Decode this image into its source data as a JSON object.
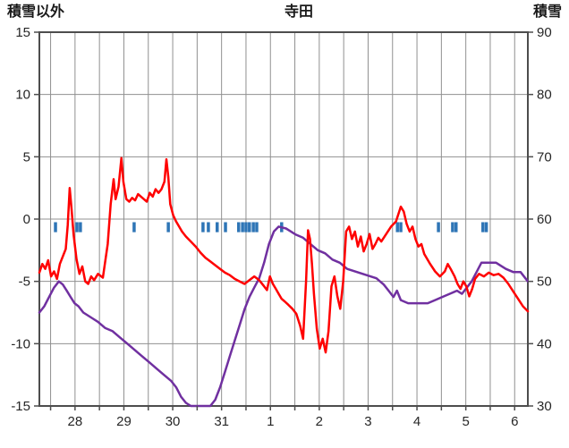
{
  "header": {
    "left_axis_title": "積雪以外",
    "title": "寺田",
    "right_axis_title": "積雪"
  },
  "chart_data": {
    "type": "line",
    "title": "寺田",
    "grid_on": true,
    "grid_color": "#909090",
    "frame_color": "#4d4d4d",
    "background": "#ffffff",
    "left_axis": {
      "title": "積雪以外",
      "min": -15,
      "max": 15,
      "ticks": [
        15,
        10,
        5,
        0,
        -5,
        -10,
        -15
      ]
    },
    "right_axis": {
      "title": "積雪",
      "min": 30,
      "max": 90,
      "ticks": [
        90,
        80,
        70,
        60,
        50,
        40,
        30
      ]
    },
    "x_axis": {
      "labels": [
        "28",
        "29",
        "30",
        "31",
        "1",
        "2",
        "3",
        "4",
        "5",
        "6"
      ],
      "label_positions": [
        0.73,
        1.73,
        2.73,
        3.73,
        4.73,
        5.73,
        6.73,
        7.73,
        8.73,
        9.73
      ],
      "range": [
        0,
        10
      ],
      "gridline_start": 0.23,
      "gridline_step": 0.5
    },
    "series": [
      {
        "id": "snow-depth",
        "name": "積雪",
        "axis": "right",
        "color": "#7030A0",
        "points": [
          [
            0.0,
            45
          ],
          [
            0.1,
            46
          ],
          [
            0.2,
            47.5
          ],
          [
            0.3,
            49
          ],
          [
            0.4,
            50
          ],
          [
            0.48,
            49.5
          ],
          [
            0.56,
            48.5
          ],
          [
            0.64,
            47.5
          ],
          [
            0.72,
            46.5
          ],
          [
            0.8,
            46
          ],
          [
            0.9,
            45
          ],
          [
            1.0,
            44.5
          ],
          [
            1.1,
            44
          ],
          [
            1.2,
            43.5
          ],
          [
            1.35,
            42.5
          ],
          [
            1.5,
            42
          ],
          [
            1.65,
            41
          ],
          [
            1.8,
            40
          ],
          [
            1.95,
            39
          ],
          [
            2.1,
            38
          ],
          [
            2.25,
            37
          ],
          [
            2.4,
            36
          ],
          [
            2.55,
            35
          ],
          [
            2.7,
            34
          ],
          [
            2.8,
            33
          ],
          [
            2.9,
            31.5
          ],
          [
            3.0,
            30.5
          ],
          [
            3.1,
            30
          ],
          [
            3.5,
            30
          ],
          [
            3.6,
            31
          ],
          [
            3.7,
            33
          ],
          [
            3.8,
            35.5
          ],
          [
            3.9,
            38
          ],
          [
            4.0,
            40.5
          ],
          [
            4.1,
            43
          ],
          [
            4.2,
            45.5
          ],
          [
            4.3,
            47.5
          ],
          [
            4.4,
            49
          ],
          [
            4.5,
            50.5
          ],
          [
            4.6,
            53
          ],
          [
            4.7,
            56
          ],
          [
            4.8,
            58
          ],
          [
            4.9,
            58.8
          ],
          [
            5.05,
            58.5
          ],
          [
            5.15,
            58
          ],
          [
            5.25,
            57.5
          ],
          [
            5.4,
            57
          ],
          [
            5.55,
            56
          ],
          [
            5.7,
            55
          ],
          [
            5.85,
            54.5
          ],
          [
            6.0,
            53.5
          ],
          [
            6.15,
            53
          ],
          [
            6.3,
            52
          ],
          [
            6.5,
            51.5
          ],
          [
            6.7,
            51
          ],
          [
            6.9,
            50.5
          ],
          [
            7.05,
            49.5
          ],
          [
            7.15,
            48.5
          ],
          [
            7.25,
            47.5
          ],
          [
            7.32,
            48.5
          ],
          [
            7.4,
            47
          ],
          [
            7.55,
            46.5
          ],
          [
            7.75,
            46.5
          ],
          [
            7.95,
            46.5
          ],
          [
            8.1,
            47
          ],
          [
            8.25,
            47.5
          ],
          [
            8.4,
            48
          ],
          [
            8.55,
            48.5
          ],
          [
            8.65,
            48
          ],
          [
            8.75,
            49
          ],
          [
            8.85,
            50
          ],
          [
            8.95,
            51.5
          ],
          [
            9.05,
            53
          ],
          [
            9.2,
            53
          ],
          [
            9.35,
            53
          ],
          [
            9.45,
            52.5
          ],
          [
            9.55,
            52
          ],
          [
            9.7,
            51.5
          ],
          [
            9.85,
            51.5
          ],
          [
            10.0,
            50
          ]
        ]
      },
      {
        "id": "non-snow",
        "name": "積雪以外",
        "axis": "left",
        "color": "#FF0000",
        "points": [
          [
            0.0,
            -4.3
          ],
          [
            0.06,
            -3.6
          ],
          [
            0.12,
            -4.0
          ],
          [
            0.18,
            -3.3
          ],
          [
            0.24,
            -4.6
          ],
          [
            0.3,
            -4.2
          ],
          [
            0.36,
            -4.8
          ],
          [
            0.42,
            -3.6
          ],
          [
            0.48,
            -3.0
          ],
          [
            0.54,
            -2.4
          ],
          [
            0.58,
            -0.5
          ],
          [
            0.62,
            2.5
          ],
          [
            0.66,
            0.8
          ],
          [
            0.7,
            -1.2
          ],
          [
            0.76,
            -3.2
          ],
          [
            0.82,
            -4.4
          ],
          [
            0.88,
            -3.8
          ],
          [
            0.94,
            -5.0
          ],
          [
            1.0,
            -5.2
          ],
          [
            1.06,
            -4.6
          ],
          [
            1.12,
            -4.9
          ],
          [
            1.2,
            -4.4
          ],
          [
            1.3,
            -4.7
          ],
          [
            1.4,
            -2.0
          ],
          [
            1.46,
            1.2
          ],
          [
            1.52,
            3.2
          ],
          [
            1.56,
            1.6
          ],
          [
            1.62,
            2.6
          ],
          [
            1.68,
            4.9
          ],
          [
            1.72,
            3.0
          ],
          [
            1.78,
            1.6
          ],
          [
            1.84,
            1.4
          ],
          [
            1.9,
            1.7
          ],
          [
            1.96,
            1.5
          ],
          [
            2.02,
            2.0
          ],
          [
            2.08,
            1.8
          ],
          [
            2.14,
            1.6
          ],
          [
            2.2,
            1.4
          ],
          [
            2.26,
            2.1
          ],
          [
            2.32,
            1.8
          ],
          [
            2.38,
            2.4
          ],
          [
            2.44,
            2.1
          ],
          [
            2.5,
            2.4
          ],
          [
            2.56,
            3.0
          ],
          [
            2.6,
            4.8
          ],
          [
            2.64,
            3.4
          ],
          [
            2.68,
            1.2
          ],
          [
            2.74,
            0.3
          ],
          [
            2.8,
            -0.2
          ],
          [
            2.86,
            -0.6
          ],
          [
            2.92,
            -1.0
          ],
          [
            3.0,
            -1.4
          ],
          [
            3.1,
            -1.8
          ],
          [
            3.2,
            -2.2
          ],
          [
            3.3,
            -2.7
          ],
          [
            3.4,
            -3.1
          ],
          [
            3.5,
            -3.4
          ],
          [
            3.6,
            -3.7
          ],
          [
            3.7,
            -4.0
          ],
          [
            3.8,
            -4.3
          ],
          [
            3.9,
            -4.5
          ],
          [
            4.0,
            -4.8
          ],
          [
            4.1,
            -5.0
          ],
          [
            4.2,
            -5.2
          ],
          [
            4.3,
            -4.9
          ],
          [
            4.4,
            -4.6
          ],
          [
            4.5,
            -4.9
          ],
          [
            4.6,
            -5.4
          ],
          [
            4.66,
            -5.7
          ],
          [
            4.72,
            -4.6
          ],
          [
            4.78,
            -5.2
          ],
          [
            4.84,
            -5.6
          ],
          [
            4.9,
            -6.0
          ],
          [
            4.96,
            -6.4
          ],
          [
            5.02,
            -6.6
          ],
          [
            5.1,
            -6.9
          ],
          [
            5.18,
            -7.2
          ],
          [
            5.26,
            -7.6
          ],
          [
            5.34,
            -8.6
          ],
          [
            5.4,
            -9.6
          ],
          [
            5.46,
            -5.0
          ],
          [
            5.5,
            -0.9
          ],
          [
            5.54,
            -1.6
          ],
          [
            5.58,
            -3.6
          ],
          [
            5.62,
            -6.0
          ],
          [
            5.68,
            -8.8
          ],
          [
            5.74,
            -10.4
          ],
          [
            5.8,
            -9.6
          ],
          [
            5.86,
            -10.7
          ],
          [
            5.92,
            -9.0
          ],
          [
            5.98,
            -5.4
          ],
          [
            6.04,
            -4.6
          ],
          [
            6.1,
            -6.2
          ],
          [
            6.16,
            -7.2
          ],
          [
            6.22,
            -5.0
          ],
          [
            6.28,
            -1.0
          ],
          [
            6.34,
            -0.6
          ],
          [
            6.4,
            -1.6
          ],
          [
            6.46,
            -1.0
          ],
          [
            6.52,
            -2.2
          ],
          [
            6.58,
            -1.4
          ],
          [
            6.64,
            -2.6
          ],
          [
            6.7,
            -2.0
          ],
          [
            6.76,
            -1.2
          ],
          [
            6.82,
            -2.4
          ],
          [
            6.88,
            -2.0
          ],
          [
            6.94,
            -1.5
          ],
          [
            7.0,
            -1.8
          ],
          [
            7.1,
            -1.2
          ],
          [
            7.2,
            -0.6
          ],
          [
            7.3,
            -0.2
          ],
          [
            7.4,
            1.0
          ],
          [
            7.46,
            0.6
          ],
          [
            7.52,
            -0.4
          ],
          [
            7.58,
            -1.0
          ],
          [
            7.64,
            -0.6
          ],
          [
            7.7,
            -1.6
          ],
          [
            7.76,
            -2.2
          ],
          [
            7.82,
            -2.0
          ],
          [
            7.88,
            -2.8
          ],
          [
            7.94,
            -3.2
          ],
          [
            8.0,
            -3.6
          ],
          [
            8.1,
            -4.2
          ],
          [
            8.2,
            -4.6
          ],
          [
            8.3,
            -4.2
          ],
          [
            8.36,
            -3.6
          ],
          [
            8.42,
            -4.0
          ],
          [
            8.5,
            -4.6
          ],
          [
            8.56,
            -5.2
          ],
          [
            8.62,
            -5.6
          ],
          [
            8.68,
            -5.0
          ],
          [
            8.74,
            -5.4
          ],
          [
            8.8,
            -6.2
          ],
          [
            8.86,
            -5.6
          ],
          [
            8.92,
            -4.8
          ],
          [
            9.0,
            -4.4
          ],
          [
            9.1,
            -4.6
          ],
          [
            9.2,
            -4.3
          ],
          [
            9.3,
            -4.5
          ],
          [
            9.4,
            -4.4
          ],
          [
            9.5,
            -4.7
          ],
          [
            9.6,
            -5.2
          ],
          [
            9.7,
            -5.8
          ],
          [
            9.8,
            -6.4
          ],
          [
            9.9,
            -7.0
          ],
          [
            10.0,
            -7.4
          ]
        ]
      }
    ],
    "event_marks": {
      "id": "precipitation-marks",
      "color": "#2E75B6",
      "top": -0.25,
      "bottom": -1.05,
      "positions": [
        0.33,
        0.77,
        0.84,
        1.94,
        2.64,
        3.35,
        3.46,
        3.64,
        3.81,
        4.08,
        4.16,
        4.23,
        4.3,
        4.38,
        4.45,
        4.96,
        7.33,
        7.4,
        8.17,
        8.46,
        8.53,
        9.08,
        9.15
      ]
    }
  }
}
